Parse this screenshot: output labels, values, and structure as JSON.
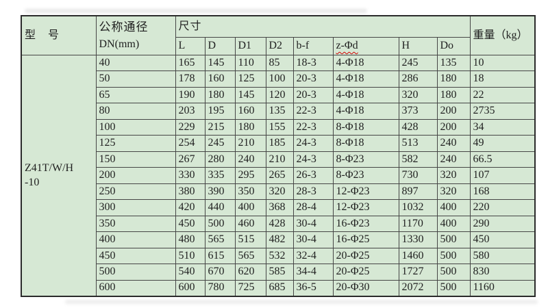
{
  "colors": {
    "table_bg": "#d6e8d4",
    "grid_line": "#454545",
    "outer_border": "#2a2a2a",
    "text": "#1f1f1f",
    "squiggle": "#d00000"
  },
  "table": {
    "header": {
      "model": "型　号",
      "dn_line1": "公称通径",
      "dn_line2": "DN(mm)",
      "size": "尺寸",
      "weight": "重量（kg）"
    },
    "sub_headers": [
      "L",
      "D",
      "D1",
      "D2",
      "b-f",
      "z-Φd",
      "H",
      "Do"
    ],
    "model": {
      "line1": "Z41T/W/H",
      "line2": "-10"
    },
    "column_keys": [
      "dn",
      "l",
      "d",
      "d1",
      "d2",
      "b-f",
      "z-phi-d",
      "h",
      "do",
      "weight"
    ],
    "rows": [
      [
        "40",
        "165",
        "145",
        "110",
        "85",
        "18-3",
        "4-Φ18",
        "245",
        "135",
        "10"
      ],
      [
        "50",
        "178",
        "160",
        "125",
        "100",
        "20-3",
        "4-Φ18",
        "286",
        "180",
        "18"
      ],
      [
        "65",
        "190",
        "180",
        "145",
        "120",
        "20-3",
        "4-Φ18",
        "320",
        "180",
        "22"
      ],
      [
        "80",
        "203",
        "195",
        "160",
        "135",
        "22-3",
        "4-Φ18",
        "373",
        "200",
        "2735"
      ],
      [
        "100",
        "229",
        "215",
        "180",
        "155",
        "22-3",
        "8-Φ18",
        "428",
        "200",
        "34"
      ],
      [
        "125",
        "254",
        "245",
        "210",
        "185",
        "24-3",
        "8-Φ18",
        "513",
        "240",
        "49"
      ],
      [
        "150",
        "267",
        "280",
        "240",
        "210",
        "24-3",
        "8-Φ23",
        "582",
        "240",
        "66.5"
      ],
      [
        "200",
        "330",
        "335",
        "295",
        "265",
        "26-3",
        "8-Φ23",
        "730",
        "320",
        "107"
      ],
      [
        "250",
        "380",
        "390",
        "350",
        "320",
        "28-3",
        "12-Φ23",
        "897",
        "320",
        "168"
      ],
      [
        "300",
        "420",
        "440",
        "400",
        "368",
        "28-4",
        "12-Φ23",
        "1032",
        "400",
        "220"
      ],
      [
        "350",
        "450",
        "500",
        "460",
        "428",
        "30-4",
        "16-Φ23",
        "1170",
        "400",
        "290"
      ],
      [
        "400",
        "480",
        "565",
        "515",
        "482",
        "30-4",
        "16-Φ25",
        "1330",
        "500",
        "450"
      ],
      [
        "450",
        "510",
        "615",
        "565",
        "532",
        "32-4",
        "20-Φ25",
        "1460",
        "500",
        "580"
      ],
      [
        "500",
        "540",
        "670",
        "620",
        "585",
        "34-4",
        "20-Φ25",
        "1727",
        "500",
        "830"
      ],
      [
        "600",
        "600",
        "780",
        "725",
        "685",
        "36-5",
        "20-Φ30",
        "2072",
        "500",
        "1160"
      ]
    ]
  }
}
